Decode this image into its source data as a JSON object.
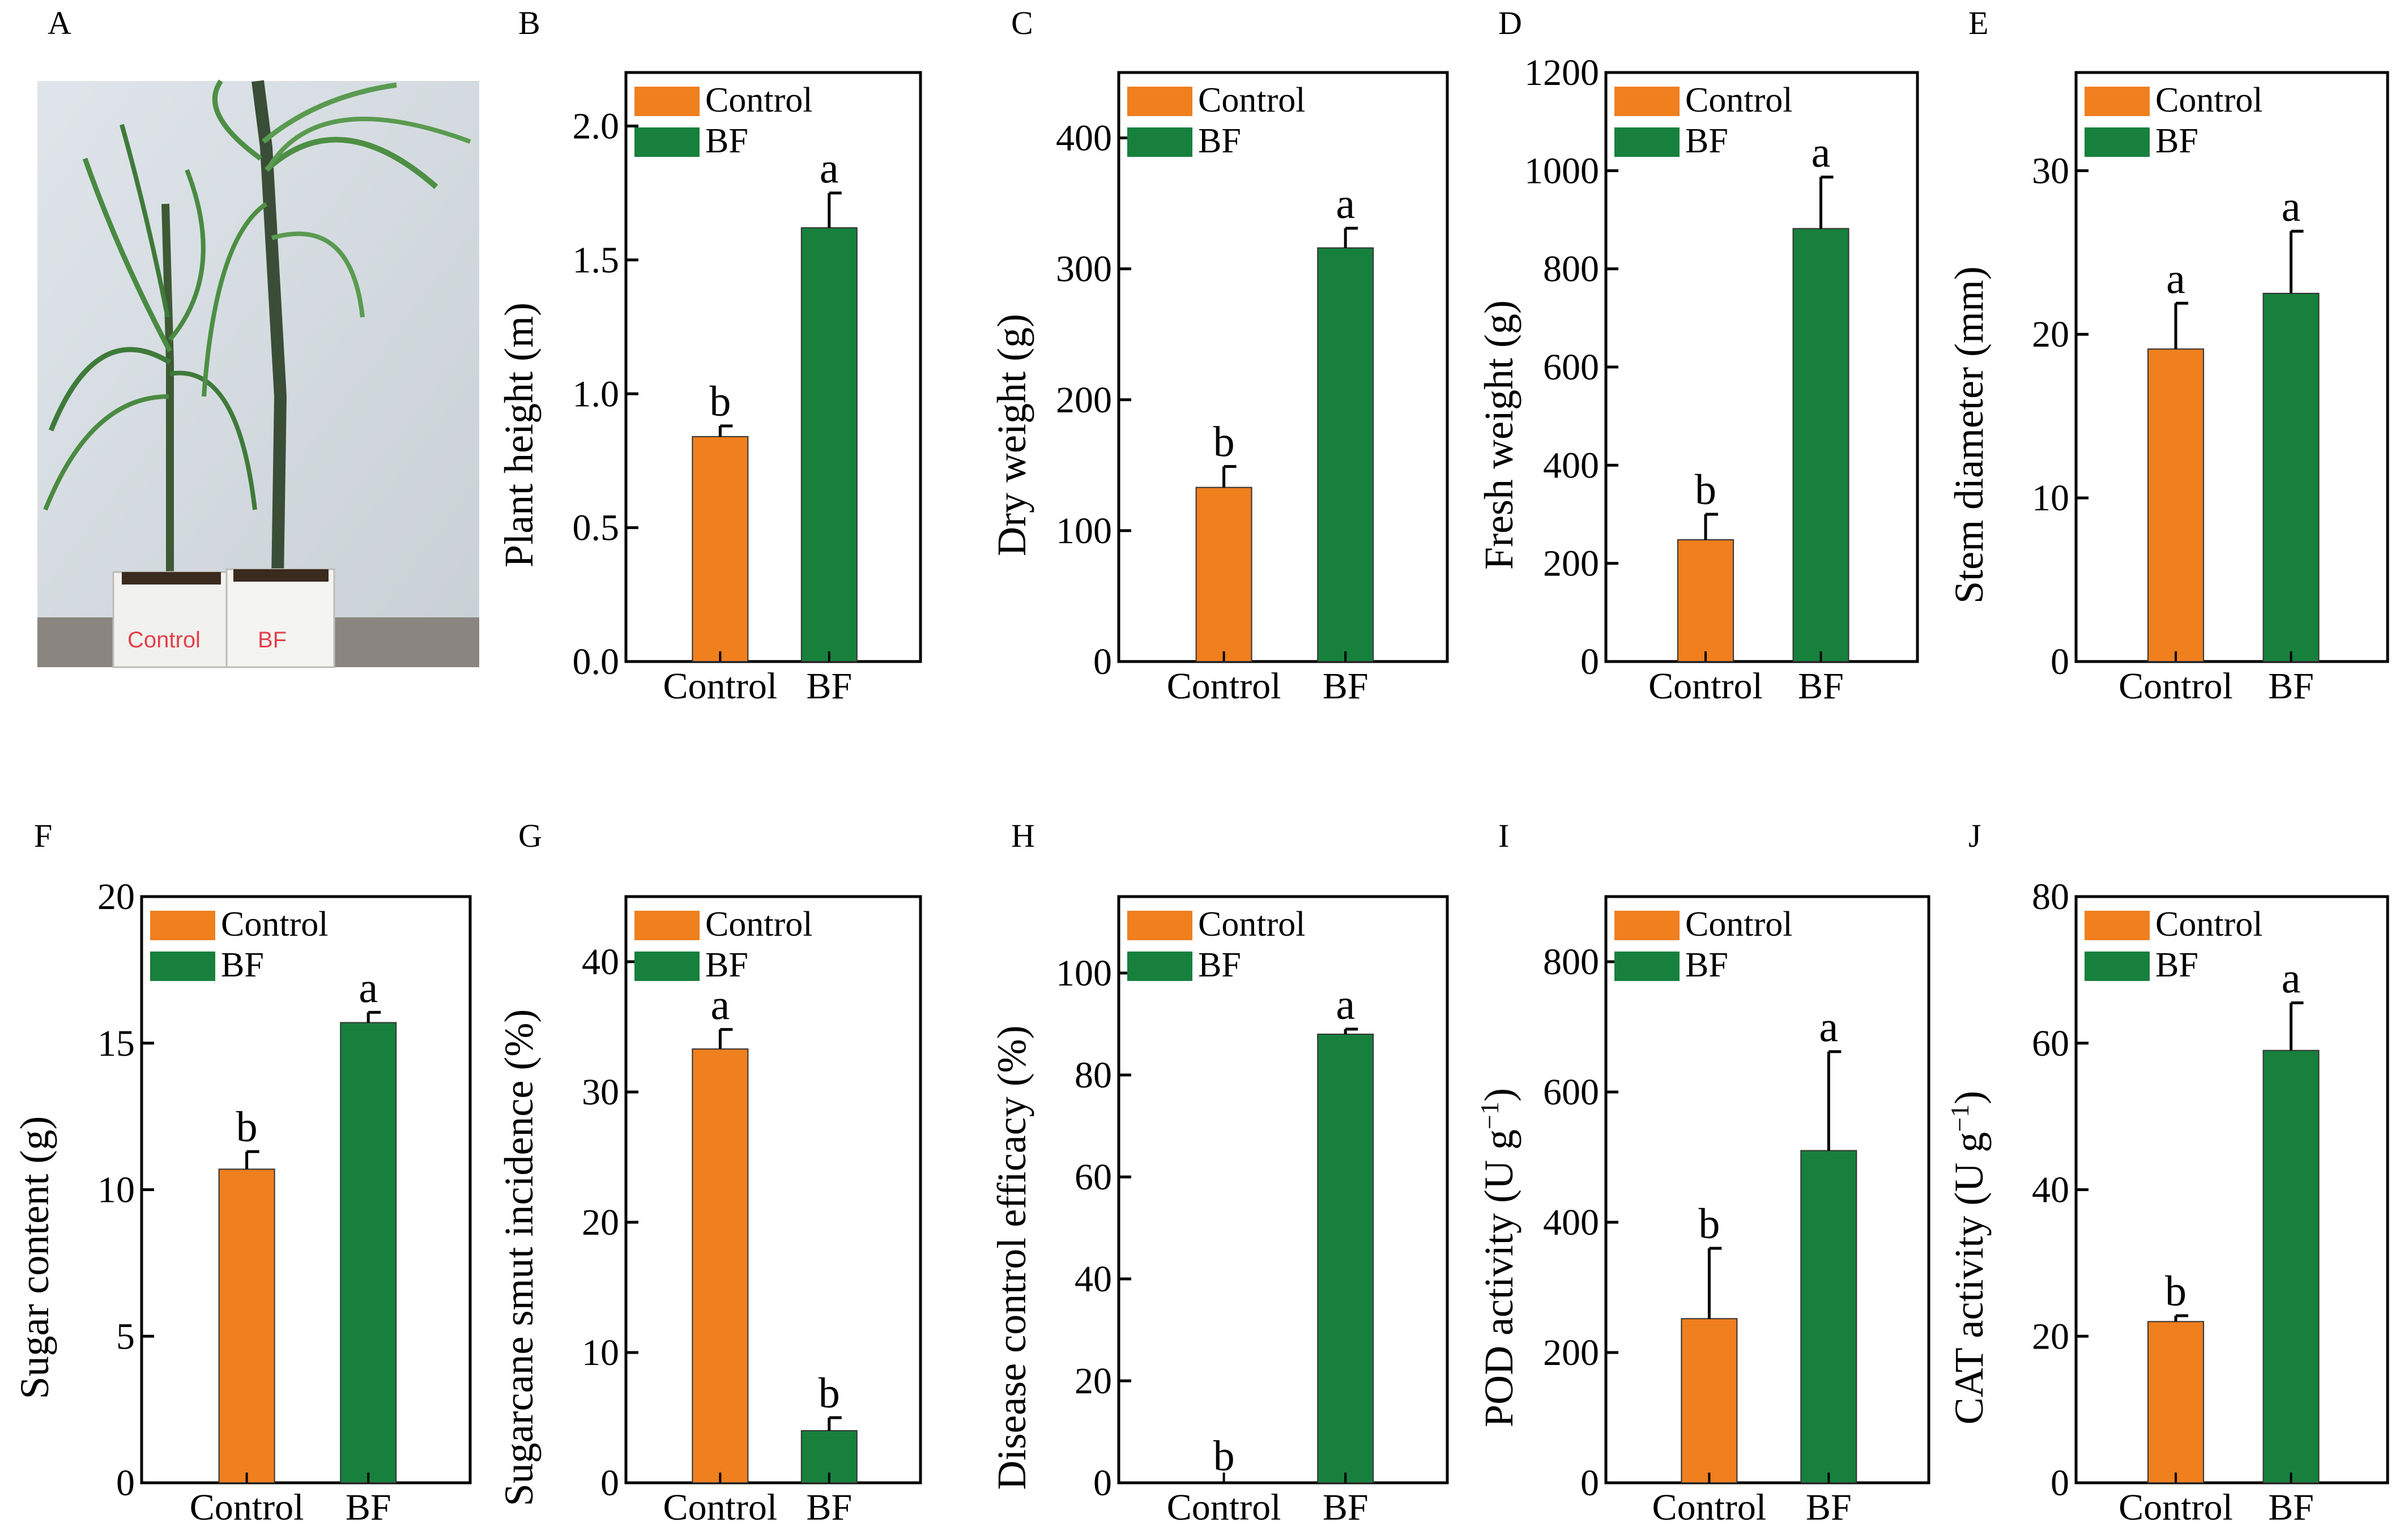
{
  "colors": {
    "control": "#f07f1e",
    "bf": "#17803d",
    "axis": "#000000"
  },
  "photo": {
    "label": "A",
    "pot_labels": [
      "Control",
      "BF"
    ]
  },
  "chart_data": [
    {
      "panel": "B",
      "type": "bar",
      "categories": [
        "Control",
        "BF"
      ],
      "values": [
        0.84,
        1.62
      ],
      "errors": [
        0.04,
        0.13
      ],
      "sig": [
        "b",
        "a"
      ],
      "ylabel": "Plant height  (m)",
      "ylim": [
        0,
        2.2
      ],
      "yticks": [
        "0.0",
        "0.5",
        "1.0",
        "1.5",
        "2.0"
      ],
      "ytick_values": [
        0,
        0.5,
        1.0,
        1.5,
        2.0
      ],
      "legend": [
        "Control",
        "BF"
      ]
    },
    {
      "panel": "C",
      "type": "bar",
      "categories": [
        "Control",
        "BF"
      ],
      "values": [
        133,
        316
      ],
      "errors": [
        16,
        15
      ],
      "sig": [
        "b",
        "a"
      ],
      "ylabel": "Dry weight (g)",
      "ylim": [
        0,
        450
      ],
      "yticks": [
        "0",
        "100",
        "200",
        "300",
        "400"
      ],
      "ytick_values": [
        0,
        100,
        200,
        300,
        400
      ],
      "legend": [
        "Control",
        "BF"
      ]
    },
    {
      "panel": "D",
      "type": "bar",
      "categories": [
        "Control",
        "BF"
      ],
      "values": [
        248,
        882
      ],
      "errors": [
        52,
        105
      ],
      "sig": [
        "b",
        "a"
      ],
      "ylabel": "Fresh weight  (g)",
      "ylim": [
        0,
        1200
      ],
      "yticks": [
        "0",
        "200",
        "400",
        "600",
        "800",
        "1000",
        "1200"
      ],
      "ytick_values": [
        0,
        200,
        400,
        600,
        800,
        1000,
        1200
      ],
      "legend": [
        "Control",
        "BF"
      ]
    },
    {
      "panel": "E",
      "type": "bar",
      "categories": [
        "Control",
        "BF"
      ],
      "values": [
        19.1,
        22.5
      ],
      "errors": [
        2.8,
        3.8
      ],
      "sig": [
        "a",
        "a"
      ],
      "ylabel": "Stem diameter  (mm)",
      "ylim": [
        0,
        36
      ],
      "yticks": [
        "0",
        "10",
        "20",
        "30"
      ],
      "ytick_values": [
        0,
        10,
        20,
        30
      ],
      "legend": [
        "Control",
        "BF"
      ]
    },
    {
      "panel": "F",
      "type": "bar",
      "categories": [
        "Control",
        "BF"
      ],
      "values": [
        10.7,
        15.7
      ],
      "errors": [
        0.6,
        0.35
      ],
      "sig": [
        "b",
        "a"
      ],
      "ylabel": "Sugar content  (g)",
      "ylim": [
        0,
        20
      ],
      "yticks": [
        "0",
        "5",
        "10",
        "15",
        "20"
      ],
      "ytick_values": [
        0,
        5,
        10,
        15,
        20
      ],
      "legend": [
        "Control",
        "BF"
      ]
    },
    {
      "panel": "G",
      "type": "bar",
      "categories": [
        "Control",
        "BF"
      ],
      "values": [
        33.3,
        4.0
      ],
      "errors": [
        1.5,
        1.0
      ],
      "sig": [
        "a",
        "b"
      ],
      "ylabel": "Sugarcane smut incidence  (%)",
      "ylim": [
        0,
        45
      ],
      "yticks": [
        "0",
        "10",
        "20",
        "30",
        "40"
      ],
      "ytick_values": [
        0,
        10,
        20,
        30,
        40
      ],
      "legend": [
        "Control",
        "BF"
      ]
    },
    {
      "panel": "H",
      "type": "bar",
      "categories": [
        "Control",
        "BF"
      ],
      "values": [
        0,
        88
      ],
      "errors": [
        0,
        1.0
      ],
      "sig": [
        "b",
        "a"
      ],
      "ylabel": "Disease control efficacy (%)",
      "ylim": [
        0,
        115
      ],
      "yticks": [
        "0",
        "20",
        "40",
        "60",
        "80",
        "100"
      ],
      "ytick_values": [
        0,
        20,
        40,
        60,
        80,
        100
      ],
      "legend": [
        "Control",
        "BF"
      ]
    },
    {
      "panel": "I",
      "type": "bar",
      "categories": [
        "Control",
        "BF"
      ],
      "values": [
        252,
        510
      ],
      "errors": [
        108,
        152
      ],
      "sig": [
        "b",
        "a"
      ],
      "ylabel": "POD activity  (U g",
      "ylabel_sup": "−1",
      "ylabel_end": ")",
      "ylim": [
        0,
        900
      ],
      "yticks": [
        "0",
        "200",
        "400",
        "600",
        "800"
      ],
      "ytick_values": [
        0,
        200,
        400,
        600,
        800
      ],
      "legend": [
        "Control",
        "BF"
      ]
    },
    {
      "panel": "J",
      "type": "bar",
      "categories": [
        "Control",
        "BF"
      ],
      "values": [
        22,
        59
      ],
      "errors": [
        0.8,
        6.5
      ],
      "sig": [
        "b",
        "a"
      ],
      "ylabel": "CAT activity  (U g",
      "ylabel_sup": "−1",
      "ylabel_end": ")",
      "ylim": [
        0,
        80
      ],
      "yticks": [
        "0",
        "20",
        "40",
        "60",
        "80"
      ],
      "ytick_values": [
        0,
        20,
        40,
        60,
        80
      ],
      "legend": [
        "Control",
        "BF"
      ]
    }
  ]
}
